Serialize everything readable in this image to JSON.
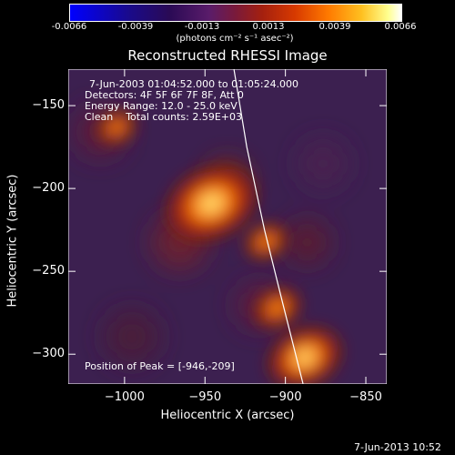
{
  "colorbar": {
    "ticks": [
      "-0.0066",
      "-0.0039",
      "-0.0013",
      "0.0013",
      "0.0039",
      "0.0066"
    ],
    "units": "(photons cm⁻² s⁻¹ asec⁻²)"
  },
  "title": "Reconstructed RHESSI Image",
  "overlay": {
    "line1": "7-Jun-2003 01:04:52.000 to 01:05:24.000",
    "line2": "Detectors: 4F 5F 6F 7F 8F, Att 0",
    "line3": "Energy Range: 12.0 - 25.0 keV",
    "line4": "Clean    Total counts: 2.59E+03",
    "peak": "Position of Peak = [-946,-209]"
  },
  "footer_date": "7-Jun-2013 10:52",
  "chart_data": {
    "type": "heatmap",
    "title": "Reconstructed RHESSI Image",
    "xlabel": "Heliocentric X (arcsec)",
    "ylabel": "Heliocentric Y (arcsec)",
    "xlim": [
      -1035,
      -837
    ],
    "ylim": [
      -318,
      -128
    ],
    "xticks": [
      -1000,
      -950,
      -900,
      -850
    ],
    "yticks": [
      -300,
      -250,
      -200,
      -150
    ],
    "xtick_labels": [
      "−1000",
      "−950",
      "−900",
      "−850"
    ],
    "ytick_labels": [
      "−300",
      "−250",
      "−200",
      "−150"
    ],
    "sources": [
      {
        "x": -946,
        "y": -209,
        "relative_intensity": 1.0
      },
      {
        "x": -888,
        "y": -302,
        "relative_intensity": 0.75
      },
      {
        "x": -905,
        "y": -272,
        "relative_intensity": 0.35
      },
      {
        "x": -1005,
        "y": -163,
        "relative_intensity": 0.25
      },
      {
        "x": -912,
        "y": -232,
        "relative_intensity": 0.3
      }
    ],
    "limb_curve": [
      [
        -932,
        -128
      ],
      [
        -924,
        -175
      ],
      [
        -913,
        -225
      ],
      [
        -902,
        -268
      ],
      [
        -889,
        -318
      ]
    ],
    "peak_position": [
      -946,
      -209
    ]
  }
}
